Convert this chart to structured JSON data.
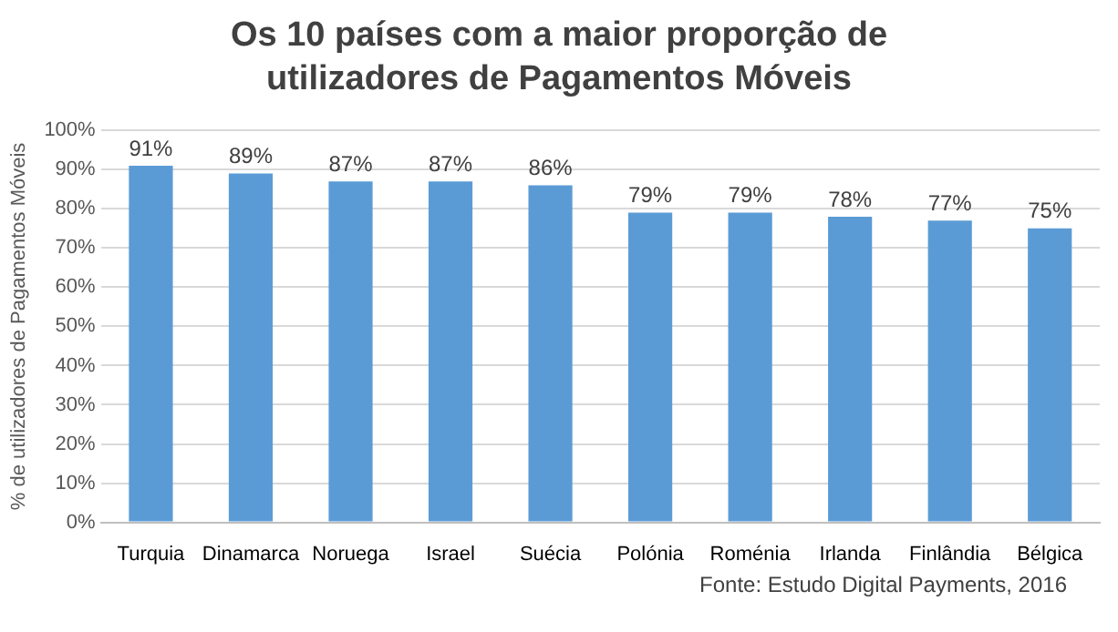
{
  "chart_data": {
    "type": "bar",
    "title": "Os 10 países com a maior proporção de utilizadores de Pagamentos Móveis",
    "ylabel": "% de utilizadores de Pagamentos Móveis",
    "categories": [
      "Turquia",
      "Dinamarca",
      "Noruega",
      "Israel",
      "Suécia",
      "Polónia",
      "Roménia",
      "Irlanda",
      "Finlândia",
      "Bélgica"
    ],
    "values": [
      91,
      89,
      87,
      87,
      86,
      79,
      79,
      78,
      77,
      75
    ],
    "value_labels": [
      "91%",
      "89%",
      "87%",
      "87%",
      "86%",
      "79%",
      "79%",
      "78%",
      "77%",
      "75%"
    ],
    "color": "#5b9bd5",
    "ylim": [
      0,
      100
    ],
    "yticks": [
      {
        "value": 0,
        "label": "0%"
      },
      {
        "value": 10,
        "label": "10%"
      },
      {
        "value": 20,
        "label": "20%"
      },
      {
        "value": 30,
        "label": "30%"
      },
      {
        "value": 40,
        "label": "40%"
      },
      {
        "value": 50,
        "label": "50%"
      },
      {
        "value": 60,
        "label": "60%"
      },
      {
        "value": 70,
        "label": "70%"
      },
      {
        "value": 80,
        "label": "80%"
      },
      {
        "value": 90,
        "label": "90%"
      },
      {
        "value": 100,
        "label": "100%"
      }
    ],
    "grid": "y",
    "annotations": [
      "Fonte: Estudo Digital Payments, 2016"
    ]
  }
}
